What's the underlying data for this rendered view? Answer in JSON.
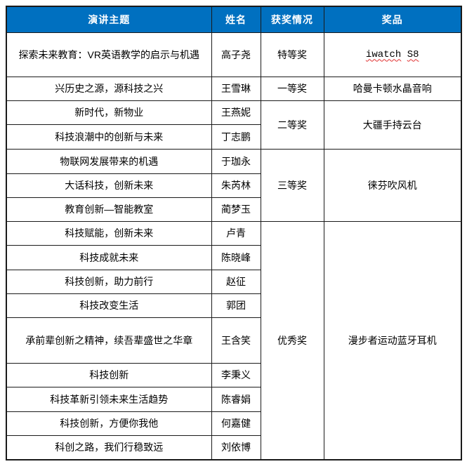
{
  "table": {
    "headers": [
      "演讲主题",
      "姓名",
      "获奖情况",
      "奖品"
    ],
    "header_bg": "#0070C0",
    "header_text_color": "#FFFFFF",
    "border_color": "#1a1a1a",
    "rows": [
      {
        "topic": "探索未来教育：VR英语教学的启示与机遇",
        "name": "高子尧",
        "award": {
          "label": "特等奖",
          "rowspan": 1
        },
        "prize": {
          "label": "iwatch S8",
          "rowspan": 1,
          "latin": true,
          "misspelled": true
        }
      },
      {
        "topic": "兴历史之源，源科技之兴",
        "name": "王雪琳",
        "award": {
          "label": "一等奖",
          "rowspan": 1
        },
        "prize": {
          "label": "哈曼卡顿水晶音响",
          "rowspan": 1
        }
      },
      {
        "topic": "新时代，新物业",
        "name": "王燕妮",
        "award": {
          "label": "二等奖",
          "rowspan": 2
        },
        "prize": {
          "label": "大疆手持云台",
          "rowspan": 2
        }
      },
      {
        "topic": "科技浪潮中的创新与未来",
        "name": "丁志鹏"
      },
      {
        "topic": "物联网发展带来的机遇",
        "name": "于珈永",
        "award": {
          "label": "三等奖",
          "rowspan": 3
        },
        "prize": {
          "label": "徕芬吹风机",
          "rowspan": 3
        }
      },
      {
        "topic": "大话科技，创新未来",
        "name": "朱芮林"
      },
      {
        "topic": "教育创新—智能教室",
        "name": "蔺梦玉"
      },
      {
        "topic": "科技赋能，创新未来",
        "name": "卢青",
        "award": {
          "label": "优秀奖",
          "rowspan": 9
        },
        "prize": {
          "label": "漫步者运动蓝牙耳机",
          "rowspan": 9
        }
      },
      {
        "topic": "科技成就未来",
        "name": "陈晓峰"
      },
      {
        "topic": "科技创新，助力前行",
        "name": "赵征"
      },
      {
        "topic": "科技改变生活",
        "name": "郭团"
      },
      {
        "topic": "承前辈创新之精神，续吾辈盛世之华章",
        "name": "王含笑"
      },
      {
        "topic": "科技创新",
        "name": "李秉义"
      },
      {
        "topic": "科技革新引领未来生活趋势",
        "name": "陈睿娟"
      },
      {
        "topic": "科技创新，方便你我他",
        "name": "何嘉健"
      },
      {
        "topic": "科创之路，我们行稳致远",
        "name": "刘依博"
      }
    ]
  }
}
